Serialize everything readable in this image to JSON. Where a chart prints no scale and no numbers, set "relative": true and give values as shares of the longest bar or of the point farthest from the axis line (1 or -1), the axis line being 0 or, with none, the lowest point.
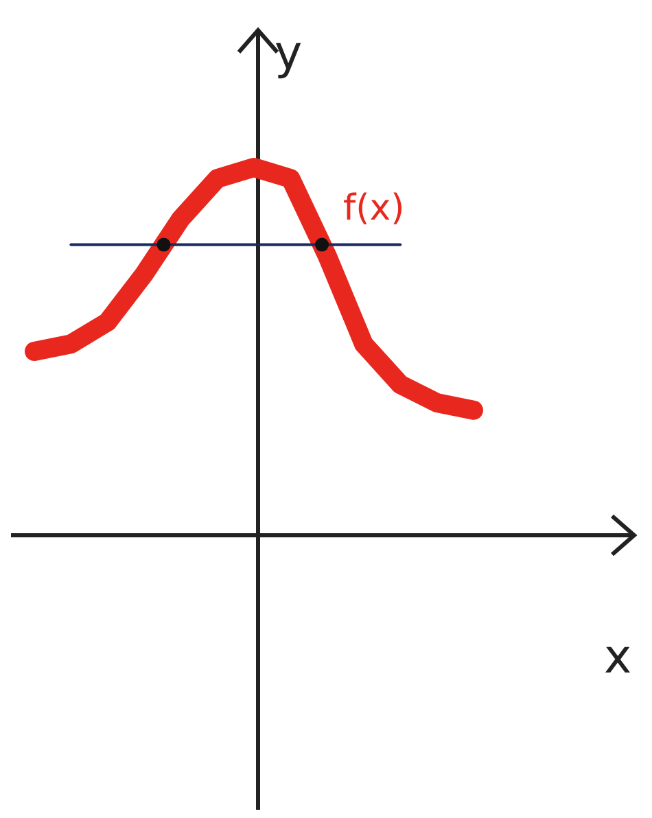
{
  "chart_data": {
    "type": "line",
    "relative": true,
    "xlabel": "x",
    "ylabel": "y",
    "annotations": [
      "f(x)"
    ],
    "categories": [
      null,
      null,
      null,
      null,
      null,
      null,
      null,
      null,
      null,
      null,
      null,
      null,
      null
    ],
    "series": [
      {
        "color": "#e8281e",
        "values": [
          0.5,
          0.52,
          0.58,
          0.71,
          0.86,
          0.97,
          1.0,
          0.97,
          0.76,
          0.52,
          0.41,
          0.36,
          0.34
        ]
      }
    ],
    "ref_lines": [
      {
        "axis": "y",
        "value": 0.79,
        "color": "#1a2a5e"
      }
    ]
  }
}
